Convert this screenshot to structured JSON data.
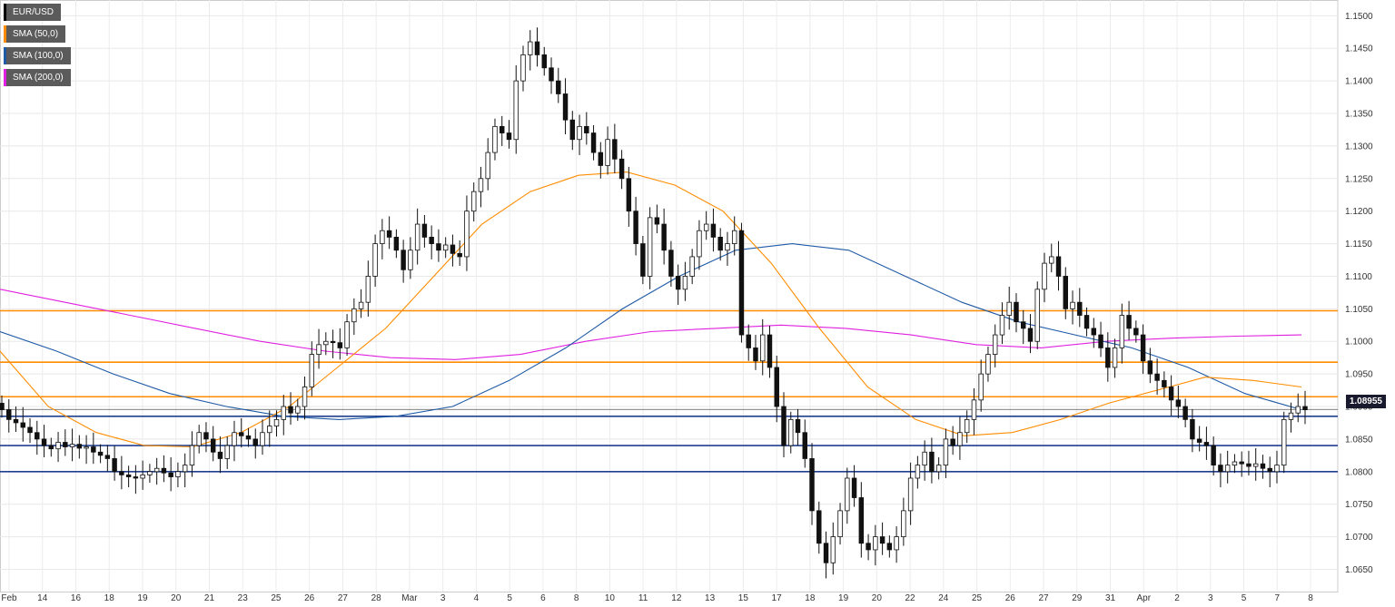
{
  "chart_data": {
    "type": "candlestick",
    "title": "EUR/USD",
    "legend": [
      {
        "name": "EUR/USD",
        "color": "#000000"
      },
      {
        "name": "SMA (50,0)",
        "color": "#ff8c00"
      },
      {
        "name": "SMA (100,0)",
        "color": "#1f5aa6"
      },
      {
        "name": "SMA (200,0)",
        "color": "#e020e0"
      }
    ],
    "ylim": [
      1.062,
      1.152
    ],
    "y_ticks": [
      "1.0650",
      "1.0700",
      "1.0750",
      "1.0800",
      "1.0850",
      "1.0900",
      "1.0950",
      "1.1000",
      "1.1050",
      "1.1100",
      "1.1150",
      "1.1200",
      "1.1250",
      "1.1300",
      "1.1350",
      "1.1400",
      "1.1450",
      "1.1500"
    ],
    "x_ticks": [
      "Feb",
      "14",
      "16",
      "18",
      "19",
      "20",
      "21",
      "23",
      "25",
      "26",
      "27",
      "28",
      "Mar",
      "3",
      "4",
      "5",
      "6",
      "8",
      "10",
      "11",
      "12",
      "13",
      "15",
      "17",
      "18",
      "19",
      "20",
      "22",
      "24",
      "25",
      "26",
      "27",
      "29",
      "31",
      "Apr",
      "2",
      "3",
      "5",
      "7",
      "8"
    ],
    "current_price": "1.08955",
    "horizontal_levels": [
      {
        "value": 1.1047,
        "color": "#ff8c00"
      },
      {
        "value": 1.0968,
        "color": "#ff8c00"
      },
      {
        "value": 1.0915,
        "color": "#ff8c00"
      },
      {
        "value": 1.0885,
        "color": "#1f3f8f"
      },
      {
        "value": 1.084,
        "color": "#1f3f8f"
      },
      {
        "value": 1.08,
        "color": "#1f3f8f"
      }
    ],
    "close_series": [
      1.0895,
      1.088,
      1.0875,
      1.0868,
      1.086,
      1.085,
      1.084,
      1.0835,
      1.0845,
      1.0838,
      1.0842,
      1.0836,
      1.0838,
      1.083,
      1.0825,
      1.082,
      1.08,
      1.0795,
      1.0792,
      1.079,
      1.0795,
      1.08,
      1.0805,
      1.0798,
      1.0792,
      1.08,
      1.081,
      1.084,
      1.086,
      1.085,
      1.083,
      1.082,
      1.084,
      1.086,
      1.0855,
      1.085,
      1.084,
      1.086,
      1.087,
      1.088,
      1.09,
      1.089,
      1.09,
      1.093,
      1.098,
      1.0995,
      1.1,
      1.0998,
      1.099,
      1.103,
      1.105,
      1.106,
      1.11,
      1.115,
      1.117,
      1.116,
      1.114,
      1.111,
      1.114,
      1.118,
      1.116,
      1.115,
      1.114,
      1.1148,
      1.1135,
      1.113,
      1.12,
      1.123,
      1.125,
      1.129,
      1.133,
      1.132,
      1.131,
      1.14,
      1.144,
      1.146,
      1.144,
      1.142,
      1.14,
      1.138,
      1.134,
      1.131,
      1.133,
      1.132,
      1.129,
      1.127,
      1.131,
      1.128,
      1.125,
      1.12,
      1.115,
      1.11,
      1.119,
      1.118,
      1.114,
      1.11,
      1.108,
      1.11,
      1.113,
      1.117,
      1.118,
      1.116,
      1.114,
      1.115,
      1.117,
      1.101,
      1.099,
      1.097,
      1.101,
      1.096,
      1.09,
      1.084,
      1.088,
      1.086,
      1.082,
      1.074,
      1.069,
      1.066,
      1.07,
      1.074,
      1.079,
      1.076,
      1.069,
      1.068,
      1.07,
      1.069,
      1.068,
      1.07,
      1.074,
      1.079,
      1.081,
      1.083,
      1.08,
      1.081,
      1.085,
      1.084,
      1.086,
      1.088,
      1.091,
      1.095,
      1.098,
      1.101,
      1.104,
      1.106,
      1.103,
      1.102,
      1.1,
      1.108,
      1.112,
      1.113,
      1.11,
      1.105,
      1.106,
      1.104,
      1.102,
      1.101,
      1.099,
      1.096,
      1.099,
      1.104,
      1.102,
      1.101,
      1.097,
      1.095,
      1.094,
      1.093,
      1.091,
      1.09,
      1.088,
      1.085,
      1.0845,
      1.084,
      1.081,
      1.08,
      1.081,
      1.0815,
      1.0812,
      1.0808,
      1.0812,
      1.0805,
      1.08,
      1.081,
      1.088,
      1.089,
      1.09,
      1.0895
    ],
    "sma50": [
      1.0985,
      1.09,
      1.086,
      1.084,
      1.0838,
      1.086,
      1.09,
      1.096,
      1.102,
      1.11,
      1.118,
      1.123,
      1.1255,
      1.126,
      1.124,
      1.12,
      1.112,
      1.102,
      1.093,
      1.088,
      1.0855,
      1.086,
      1.088,
      1.0905,
      1.0925,
      1.0945,
      1.094,
      1.093
    ],
    "sma100": [
      1.1015,
      1.0985,
      1.095,
      1.092,
      1.09,
      1.0885,
      1.088,
      1.0885,
      1.09,
      1.094,
      1.099,
      1.105,
      1.11,
      1.114,
      1.115,
      1.114,
      1.11,
      1.106,
      1.103,
      1.101,
      1.099,
      1.096,
      1.092,
      1.0895
    ],
    "sma200": [
      1.108,
      1.106,
      1.104,
      1.102,
      1.1,
      1.0985,
      1.0975,
      1.0972,
      1.098,
      1.1,
      1.1015,
      1.102,
      1.1025,
      1.102,
      1.101,
      1.0995,
      1.099,
      1.1,
      1.1005,
      1.1008,
      1.101
    ]
  }
}
